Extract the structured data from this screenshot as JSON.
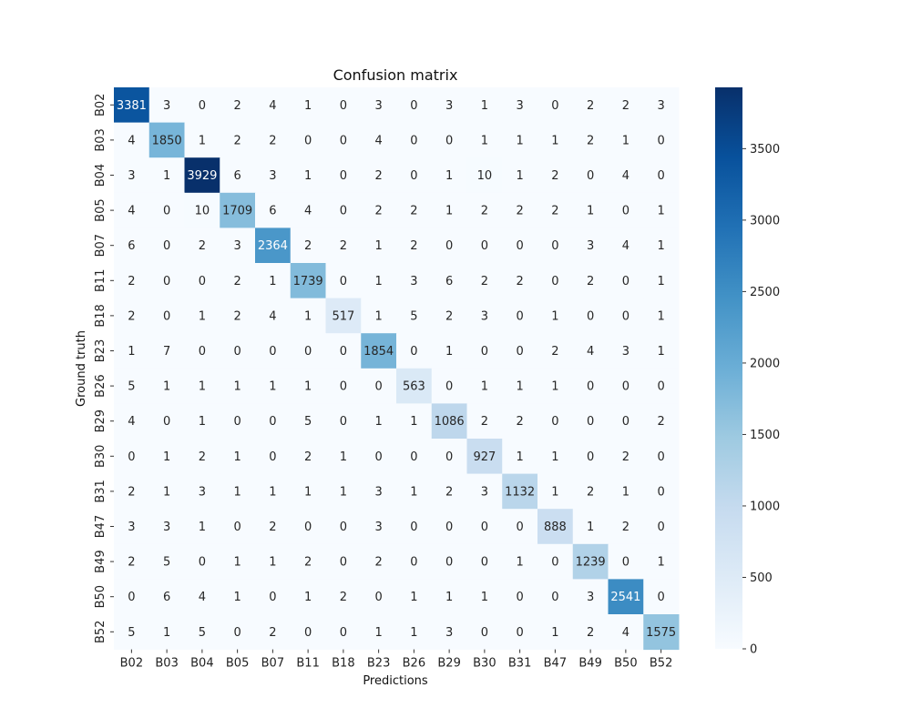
{
  "chart_data": {
    "type": "heatmap",
    "title": "Confusion matrix",
    "xlabel": "Predictions",
    "ylabel": "Ground truth",
    "x_categories": [
      "B02",
      "B03",
      "B04",
      "B05",
      "B07",
      "B11",
      "B18",
      "B23",
      "B26",
      "B29",
      "B30",
      "B31",
      "B47",
      "B49",
      "B50",
      "B52"
    ],
    "y_categories": [
      "B02",
      "B03",
      "B04",
      "B05",
      "B07",
      "B11",
      "B18",
      "B23",
      "B26",
      "B29",
      "B30",
      "B31",
      "B47",
      "B49",
      "B50",
      "B52"
    ],
    "values": [
      [
        3381,
        3,
        0,
        2,
        4,
        1,
        0,
        3,
        0,
        3,
        1,
        3,
        0,
        2,
        2,
        3
      ],
      [
        4,
        1850,
        1,
        2,
        2,
        0,
        0,
        4,
        0,
        0,
        1,
        1,
        1,
        2,
        1,
        0
      ],
      [
        3,
        1,
        3929,
        6,
        3,
        1,
        0,
        2,
        0,
        1,
        10,
        1,
        2,
        0,
        4,
        0
      ],
      [
        4,
        0,
        10,
        1709,
        6,
        4,
        0,
        2,
        2,
        1,
        2,
        2,
        2,
        1,
        0,
        1
      ],
      [
        6,
        0,
        2,
        3,
        2364,
        2,
        2,
        1,
        2,
        0,
        0,
        0,
        0,
        3,
        4,
        1
      ],
      [
        2,
        0,
        0,
        2,
        1,
        1739,
        0,
        1,
        3,
        6,
        2,
        2,
        0,
        2,
        0,
        1
      ],
      [
        2,
        0,
        1,
        2,
        4,
        1,
        517,
        1,
        5,
        2,
        3,
        0,
        1,
        0,
        0,
        1
      ],
      [
        1,
        7,
        0,
        0,
        0,
        0,
        0,
        1854,
        0,
        1,
        0,
        0,
        2,
        4,
        3,
        1
      ],
      [
        5,
        1,
        1,
        1,
        1,
        1,
        0,
        0,
        563,
        0,
        1,
        1,
        1,
        0,
        0,
        0
      ],
      [
        4,
        0,
        1,
        0,
        0,
        5,
        0,
        1,
        1,
        1086,
        2,
        2,
        0,
        0,
        0,
        2
      ],
      [
        0,
        1,
        2,
        1,
        0,
        2,
        1,
        0,
        0,
        0,
        927,
        1,
        1,
        0,
        2,
        0
      ],
      [
        2,
        1,
        3,
        1,
        1,
        1,
        1,
        3,
        1,
        2,
        3,
        1132,
        1,
        2,
        1,
        0
      ],
      [
        3,
        3,
        1,
        0,
        2,
        0,
        0,
        3,
        0,
        0,
        0,
        0,
        888,
        1,
        2,
        0
      ],
      [
        2,
        5,
        0,
        1,
        1,
        2,
        0,
        2,
        0,
        0,
        0,
        1,
        0,
        1239,
        0,
        1
      ],
      [
        0,
        6,
        4,
        1,
        0,
        1,
        2,
        0,
        1,
        1,
        1,
        0,
        0,
        3,
        2541,
        0
      ],
      [
        5,
        1,
        5,
        0,
        2,
        0,
        0,
        1,
        1,
        3,
        0,
        0,
        1,
        2,
        4,
        1575
      ]
    ],
    "vmin": 0,
    "vmax": 3929,
    "colormap": "Blues",
    "colorbar_ticks": [
      0,
      500,
      1000,
      1500,
      2000,
      2500,
      3000,
      3500
    ],
    "annotated": true
  }
}
